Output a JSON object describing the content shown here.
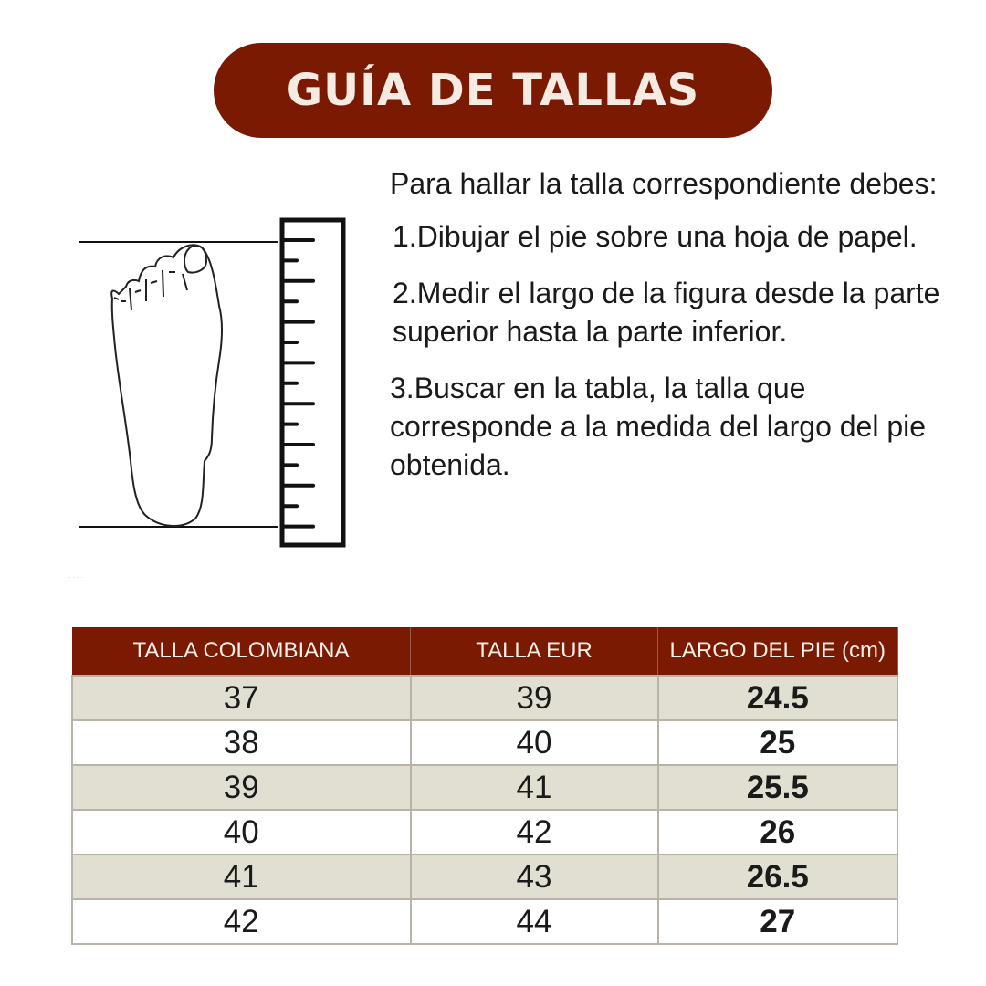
{
  "title": "GUÍA DE TALLAS",
  "instructions": {
    "intro": "Para hallar la talla correspondiente debes:",
    "steps": [
      "1.Dibujar el pie sobre una hoja de papel.",
      "2.Medir el largo de la figura desde la parte superior hasta la parte inferior.",
      "3.Buscar en la tabla, la talla que corresponde a la medida del largo del pie obtenida."
    ]
  },
  "illustration": {
    "icons": [
      "foot-outline-icon",
      "ruler-icon"
    ]
  },
  "table": {
    "headers": [
      "TALLA COLOMBIANA",
      "TALLA EUR",
      "LARGO DEL PIE (cm)"
    ],
    "rows": [
      [
        "37",
        "39",
        "24.5"
      ],
      [
        "38",
        "40",
        "25"
      ],
      [
        "39",
        "41",
        "25.5"
      ],
      [
        "40",
        "42",
        "26"
      ],
      [
        "41",
        "43",
        "26.5"
      ],
      [
        "42",
        "44",
        "27"
      ]
    ]
  },
  "colors": {
    "brand": "#7a1a03",
    "row_alt": "#e0dfd1"
  }
}
